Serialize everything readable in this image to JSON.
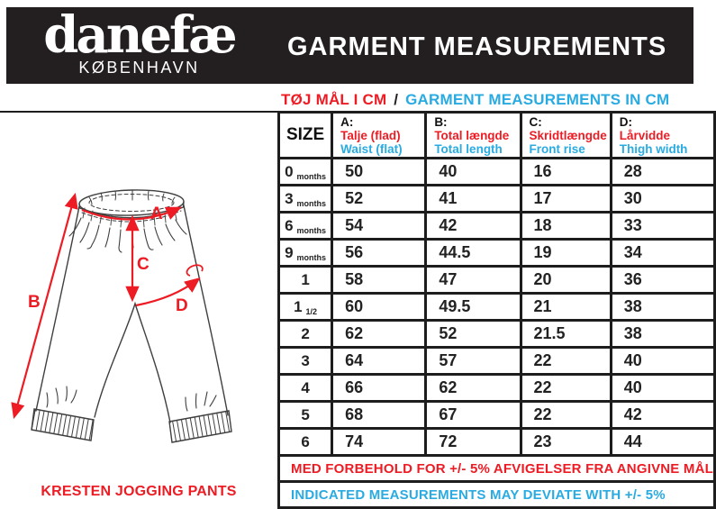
{
  "header": {
    "brand": "danefæ",
    "city": "KØBENHAVN",
    "title": "GARMENT MEASUREMENTS"
  },
  "subheader": {
    "danish": "TØJ MÅL I CM",
    "separator": "/",
    "english": "GARMENT MEASUREMENTS IN CM"
  },
  "diagram": {
    "labels": {
      "a": "A",
      "b": "B",
      "c": "C",
      "d": "D"
    }
  },
  "product": {
    "name": "KRESTEN JOGGING PANTS"
  },
  "table": {
    "columns": [
      {
        "key": "size",
        "label": "SIZE"
      },
      {
        "key": "a",
        "letter": "A:",
        "danish": "Talje (flad)",
        "english": "Waist (flat)"
      },
      {
        "key": "b",
        "letter": "B:",
        "danish": "Total længde",
        "english": "Total length"
      },
      {
        "key": "c",
        "letter": "C:",
        "danish": "Skridtlængde",
        "english": "Front rise"
      },
      {
        "key": "d",
        "letter": "D:",
        "danish": "Lårvidde",
        "english": "Thigh width"
      }
    ],
    "rows": [
      {
        "size": "0",
        "suffix": "months",
        "a": "50",
        "b": "40",
        "c": "16",
        "d": "28"
      },
      {
        "size": "3",
        "suffix": "months",
        "a": "52",
        "b": "41",
        "c": "17",
        "d": "30"
      },
      {
        "size": "6",
        "suffix": "months",
        "a": "54",
        "b": "42",
        "c": "18",
        "d": "33"
      },
      {
        "size": "9",
        "suffix": "months",
        "a": "56",
        "b": "44.5",
        "c": "19",
        "d": "34"
      },
      {
        "size": "1",
        "suffix": "",
        "a": "58",
        "b": "47",
        "c": "20",
        "d": "36"
      },
      {
        "size": "1",
        "suffix": "1/2",
        "a": "60",
        "b": "49.5",
        "c": "21",
        "d": "38"
      },
      {
        "size": "2",
        "suffix": "",
        "a": "62",
        "b": "52",
        "c": "21.5",
        "d": "38"
      },
      {
        "size": "3",
        "suffix": "",
        "a": "64",
        "b": "57",
        "c": "22",
        "d": "40"
      },
      {
        "size": "4",
        "suffix": "",
        "a": "66",
        "b": "62",
        "c": "22",
        "d": "40"
      },
      {
        "size": "5",
        "suffix": "",
        "a": "68",
        "b": "67",
        "c": "22",
        "d": "42"
      },
      {
        "size": "6",
        "suffix": "",
        "a": "74",
        "b": "72",
        "c": "23",
        "d": "44"
      }
    ]
  },
  "footer": {
    "danish": "MED FORBEHOLD FOR +/- 5% AFVIGELSER FRA ANGIVNE MÅL",
    "english": "INDICATED MEASUREMENTS MAY DEVIATE WITH +/- 5%"
  },
  "colors": {
    "red": "#ed1c24",
    "blue": "#29abe2",
    "black": "#231f20"
  }
}
